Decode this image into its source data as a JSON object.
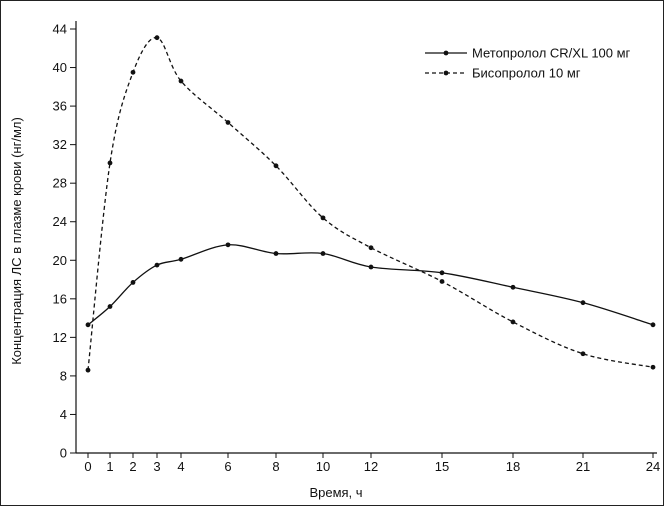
{
  "chart_data": {
    "type": "line",
    "x": [
      0,
      1,
      2,
      3,
      4,
      6,
      8,
      10,
      12,
      15,
      18,
      21,
      24
    ],
    "xticks": [
      "0",
      "1",
      "2",
      "3",
      "4",
      "6",
      "8",
      "10",
      "12",
      "15",
      "18",
      "21",
      "24"
    ],
    "yticks": [
      "0",
      "4",
      "8",
      "12",
      "16",
      "20",
      "24",
      "28",
      "32",
      "36",
      "40",
      "44"
    ],
    "ylim": [
      0,
      44
    ],
    "xlabel": "Время, ч",
    "ylabel": "Концентрация ЛС в плазме крови (нг/мл)",
    "legend_position": "top-right",
    "series": [
      {
        "name": "Метопролол CR/XL 100 мг",
        "style": "solid",
        "color": "#111111",
        "values": [
          13.3,
          15.2,
          17.7,
          19.5,
          20.1,
          21.6,
          20.7,
          20.7,
          19.3,
          18.7,
          17.2,
          15.6,
          13.3
        ]
      },
      {
        "name": "Бисопролол 10 мг",
        "style": "dashed",
        "color": "#111111",
        "values": [
          8.6,
          30.1,
          39.5,
          43.1,
          38.6,
          34.3,
          29.8,
          24.4,
          21.3,
          17.8,
          13.6,
          10.3,
          8.9
        ]
      }
    ]
  }
}
